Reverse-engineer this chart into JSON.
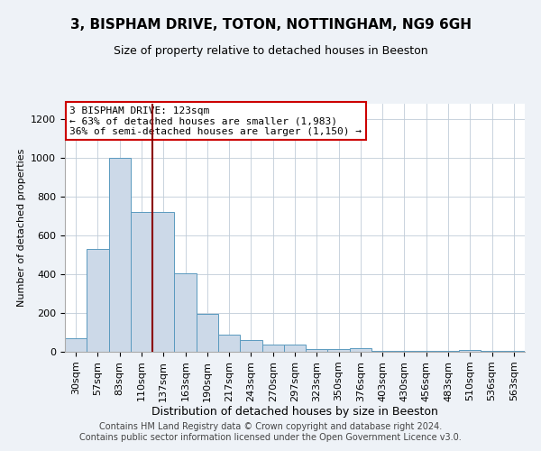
{
  "title": "3, BISPHAM DRIVE, TOTON, NOTTINGHAM, NG9 6GH",
  "subtitle": "Size of property relative to detached houses in Beeston",
  "xlabel": "Distribution of detached houses by size in Beeston",
  "ylabel": "Number of detached properties",
  "bar_color": "#ccd9e8",
  "bar_edge_color": "#5a9abf",
  "bins": [
    "30sqm",
    "57sqm",
    "83sqm",
    "110sqm",
    "137sqm",
    "163sqm",
    "190sqm",
    "217sqm",
    "243sqm",
    "270sqm",
    "297sqm",
    "323sqm",
    "350sqm",
    "376sqm",
    "403sqm",
    "430sqm",
    "456sqm",
    "483sqm",
    "510sqm",
    "536sqm",
    "563sqm"
  ],
  "values": [
    70,
    530,
    1000,
    720,
    720,
    405,
    195,
    90,
    60,
    35,
    35,
    15,
    15,
    20,
    5,
    5,
    5,
    5,
    10,
    5,
    5
  ],
  "vline_x": 3.5,
  "vline_color": "#8b0000",
  "annotation_text": "3 BISPHAM DRIVE: 123sqm\n← 63% of detached houses are smaller (1,983)\n36% of semi-detached houses are larger (1,150) →",
  "annotation_box_color": "white",
  "annotation_box_edge": "#cc0000",
  "ylim": [
    0,
    1280
  ],
  "yticks": [
    0,
    200,
    400,
    600,
    800,
    1000,
    1200
  ],
  "background_color": "#eef2f7",
  "plot_bg_color": "white",
  "footer": "Contains HM Land Registry data © Crown copyright and database right 2024.\nContains public sector information licensed under the Open Government Licence v3.0.",
  "title_fontsize": 11,
  "footer_fontsize": 7,
  "ylabel_fontsize": 8,
  "xlabel_fontsize": 9,
  "tick_fontsize": 8,
  "annot_fontsize": 8
}
